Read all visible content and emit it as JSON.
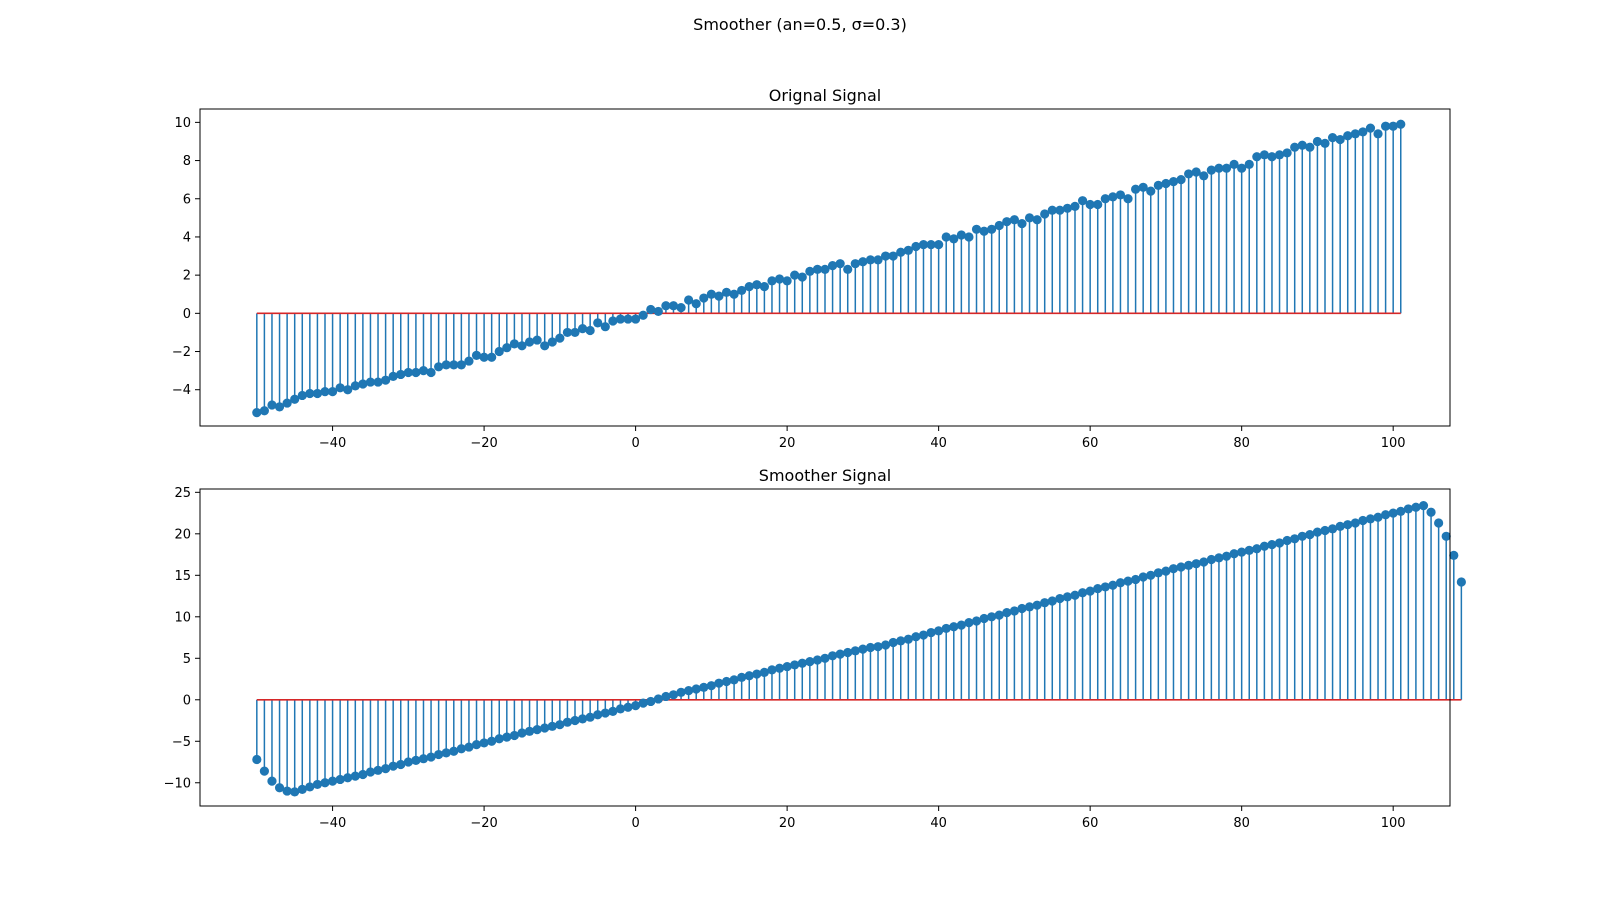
{
  "figure": {
    "suptitle": "Smoother (an=0.5, σ=0.3)"
  },
  "colors": {
    "stem": "#1f77b4",
    "baseline": "#d62728",
    "axis": "#000000"
  },
  "chart_data": [
    {
      "type": "stem",
      "title": "Orignal Signal",
      "xlabel": "",
      "ylabel": "",
      "x_start": -50,
      "x_step": 1,
      "xlim": [
        -57.5,
        107.5
      ],
      "ylim": [
        -5.9,
        10.7
      ],
      "xticks": [
        -40,
        -20,
        0,
        20,
        40,
        60,
        80,
        100
      ],
      "yticks": [
        -4,
        -2,
        0,
        2,
        4,
        6,
        8,
        10
      ],
      "baseline": 0,
      "grid": false,
      "values": [
        -5.2,
        -5.1,
        -4.8,
        -4.9,
        -4.7,
        -4.5,
        -4.3,
        -4.2,
        -4.2,
        -4.1,
        -4.1,
        -3.9,
        -4.0,
        -3.8,
        -3.7,
        -3.6,
        -3.6,
        -3.5,
        -3.3,
        -3.2,
        -3.1,
        -3.1,
        -3.0,
        -3.1,
        -2.8,
        -2.7,
        -2.7,
        -2.7,
        -2.5,
        -2.2,
        -2.3,
        -2.3,
        -2.0,
        -1.8,
        -1.6,
        -1.7,
        -1.5,
        -1.4,
        -1.7,
        -1.5,
        -1.3,
        -1.0,
        -1.0,
        -0.8,
        -0.9,
        -0.5,
        -0.7,
        -0.4,
        -0.3,
        -0.3,
        -0.3,
        -0.1,
        0.2,
        0.1,
        0.4,
        0.4,
        0.3,
        0.7,
        0.5,
        0.8,
        1.0,
        0.9,
        1.1,
        1.0,
        1.2,
        1.4,
        1.5,
        1.4,
        1.7,
        1.8,
        1.7,
        2.0,
        1.9,
        2.2,
        2.3,
        2.3,
        2.5,
        2.6,
        2.3,
        2.6,
        2.7,
        2.8,
        2.8,
        3.0,
        3.0,
        3.2,
        3.3,
        3.5,
        3.6,
        3.6,
        3.6,
        4.0,
        3.9,
        4.1,
        4.0,
        4.4,
        4.3,
        4.4,
        4.6,
        4.8,
        4.9,
        4.7,
        5.0,
        4.9,
        5.2,
        5.4,
        5.4,
        5.5,
        5.6,
        5.9,
        5.7,
        5.7,
        6.0,
        6.1,
        6.2,
        6.0,
        6.5,
        6.6,
        6.4,
        6.7,
        6.8,
        6.9,
        7.0,
        7.3,
        7.4,
        7.2,
        7.5,
        7.6,
        7.6,
        7.8,
        7.6,
        7.8,
        8.2,
        8.3,
        8.2,
        8.3,
        8.4,
        8.7,
        8.8,
        8.7,
        9.0,
        8.9,
        9.2,
        9.1,
        9.3,
        9.4,
        9.5,
        9.7,
        9.4,
        9.8,
        9.8,
        9.9
      ]
    },
    {
      "type": "stem",
      "title": "Smoother Signal",
      "xlabel": "",
      "ylabel": "",
      "x_start": -50,
      "x_step": 1,
      "xlim": [
        -57.5,
        107.5
      ],
      "ylim": [
        -12.8,
        25.4
      ],
      "xticks": [
        -40,
        -20,
        0,
        20,
        40,
        60,
        80,
        100
      ],
      "yticks": [
        -10,
        -5,
        0,
        5,
        10,
        15,
        20,
        25
      ],
      "baseline": 0,
      "grid": false,
      "values": [
        -7.2,
        -8.6,
        -9.8,
        -10.6,
        -11.0,
        -11.1,
        -10.8,
        -10.5,
        -10.2,
        -10.0,
        -9.8,
        -9.6,
        -9.4,
        -9.2,
        -9.0,
        -8.7,
        -8.5,
        -8.3,
        -8.0,
        -7.8,
        -7.5,
        -7.3,
        -7.1,
        -6.9,
        -6.6,
        -6.4,
        -6.2,
        -5.9,
        -5.7,
        -5.4,
        -5.2,
        -5.0,
        -4.7,
        -4.5,
        -4.3,
        -4.0,
        -3.8,
        -3.6,
        -3.4,
        -3.2,
        -3.0,
        -2.7,
        -2.5,
        -2.3,
        -2.1,
        -1.8,
        -1.6,
        -1.4,
        -1.1,
        -0.9,
        -0.7,
        -0.4,
        -0.2,
        0.1,
        0.4,
        0.6,
        0.9,
        1.1,
        1.3,
        1.5,
        1.7,
        2.0,
        2.2,
        2.4,
        2.7,
        2.9,
        3.1,
        3.3,
        3.6,
        3.8,
        4.0,
        4.2,
        4.4,
        4.6,
        4.8,
        5.0,
        5.3,
        5.5,
        5.7,
        5.9,
        6.1,
        6.3,
        6.4,
        6.6,
        6.9,
        7.1,
        7.3,
        7.6,
        7.8,
        8.1,
        8.3,
        8.6,
        8.8,
        9.0,
        9.3,
        9.5,
        9.8,
        10.0,
        10.2,
        10.5,
        10.7,
        11.0,
        11.2,
        11.4,
        11.7,
        11.9,
        12.2,
        12.4,
        12.6,
        12.9,
        13.1,
        13.4,
        13.6,
        13.8,
        14.1,
        14.3,
        14.5,
        14.8,
        15.0,
        15.3,
        15.5,
        15.8,
        16.0,
        16.2,
        16.4,
        16.6,
        16.9,
        17.1,
        17.3,
        17.6,
        17.8,
        18.0,
        18.2,
        18.5,
        18.7,
        18.9,
        19.2,
        19.4,
        19.7,
        19.9,
        20.2,
        20.4,
        20.6,
        20.9,
        21.1,
        21.3,
        21.6,
        21.8,
        22.0,
        22.3,
        22.5,
        22.7,
        23.0,
        23.2,
        23.4,
        22.6,
        21.3,
        19.7,
        17.4,
        14.2
      ]
    }
  ]
}
